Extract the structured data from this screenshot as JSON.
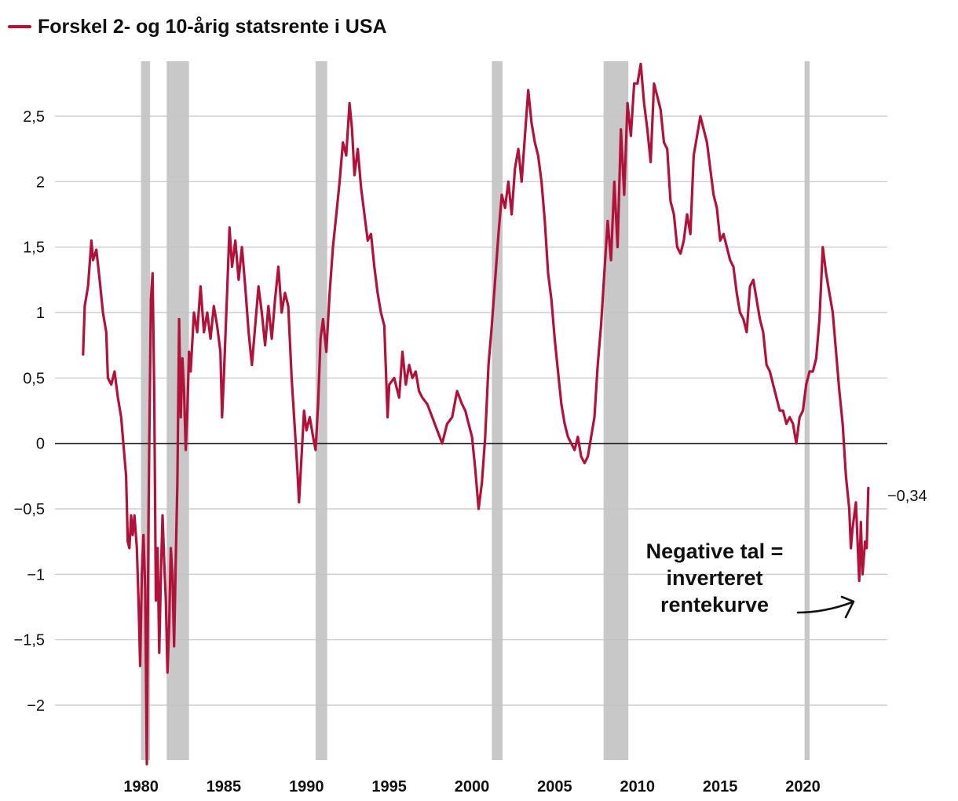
{
  "legend": {
    "label": "Forskel 2- og 10-årig statsrente i USA",
    "color": "#b0123a"
  },
  "chart_data": {
    "type": "line",
    "series": [
      {
        "name": "Forskel 2- og 10-årig statsrente i USA",
        "color": "#b0123a",
        "points": [
          [
            1976.5,
            0.68
          ],
          [
            1976.6,
            1.05
          ],
          [
            1976.8,
            1.2
          ],
          [
            1977.0,
            1.55
          ],
          [
            1977.1,
            1.4
          ],
          [
            1977.3,
            1.48
          ],
          [
            1977.5,
            1.25
          ],
          [
            1977.7,
            1.0
          ],
          [
            1977.9,
            0.85
          ],
          [
            1978.0,
            0.5
          ],
          [
            1978.2,
            0.45
          ],
          [
            1978.4,
            0.55
          ],
          [
            1978.6,
            0.35
          ],
          [
            1978.8,
            0.2
          ],
          [
            1978.9,
            0.05
          ],
          [
            1979.1,
            -0.25
          ],
          [
            1979.2,
            -0.75
          ],
          [
            1979.3,
            -0.8
          ],
          [
            1979.4,
            -0.55
          ],
          [
            1979.5,
            -0.7
          ],
          [
            1979.6,
            -0.55
          ],
          [
            1979.75,
            -0.8
          ],
          [
            1979.85,
            -1.2
          ],
          [
            1979.95,
            -1.7
          ],
          [
            1980.05,
            -1.0
          ],
          [
            1980.15,
            -0.7
          ],
          [
            1980.25,
            -1.1
          ],
          [
            1980.35,
            -2.45
          ],
          [
            1980.45,
            -0.6
          ],
          [
            1980.5,
            0.0
          ],
          [
            1980.6,
            1.1
          ],
          [
            1980.7,
            1.3
          ],
          [
            1980.8,
            0.4
          ],
          [
            1980.9,
            -1.2
          ],
          [
            1981.0,
            -0.8
          ],
          [
            1981.1,
            -1.6
          ],
          [
            1981.2,
            -1.0
          ],
          [
            1981.3,
            -0.55
          ],
          [
            1981.4,
            -0.9
          ],
          [
            1981.5,
            -1.2
          ],
          [
            1981.6,
            -1.75
          ],
          [
            1981.7,
            -1.4
          ],
          [
            1981.8,
            -0.8
          ],
          [
            1981.9,
            -1.0
          ],
          [
            1982.0,
            -1.55
          ],
          [
            1982.1,
            -0.9
          ],
          [
            1982.2,
            -0.3
          ],
          [
            1982.3,
            0.95
          ],
          [
            1982.4,
            0.2
          ],
          [
            1982.5,
            0.65
          ],
          [
            1982.6,
            0.4
          ],
          [
            1982.7,
            -0.05
          ],
          [
            1982.8,
            0.25
          ],
          [
            1982.9,
            0.7
          ],
          [
            1983.0,
            0.55
          ],
          [
            1983.2,
            1.0
          ],
          [
            1983.4,
            0.85
          ],
          [
            1983.6,
            1.2
          ],
          [
            1983.8,
            0.85
          ],
          [
            1984.0,
            1.0
          ],
          [
            1984.2,
            0.8
          ],
          [
            1984.4,
            1.05
          ],
          [
            1984.6,
            0.9
          ],
          [
            1984.8,
            0.7
          ],
          [
            1984.9,
            0.2
          ],
          [
            1985.0,
            0.5
          ],
          [
            1985.2,
            1.15
          ],
          [
            1985.35,
            1.65
          ],
          [
            1985.5,
            1.35
          ],
          [
            1985.7,
            1.55
          ],
          [
            1985.9,
            1.25
          ],
          [
            1986.1,
            1.5
          ],
          [
            1986.3,
            1.2
          ],
          [
            1986.5,
            0.85
          ],
          [
            1986.7,
            0.6
          ],
          [
            1986.9,
            0.9
          ],
          [
            1987.1,
            1.2
          ],
          [
            1987.3,
            1.0
          ],
          [
            1987.5,
            0.75
          ],
          [
            1987.7,
            1.05
          ],
          [
            1987.9,
            0.8
          ],
          [
            1988.1,
            1.1
          ],
          [
            1988.3,
            1.35
          ],
          [
            1988.5,
            1.0
          ],
          [
            1988.7,
            1.15
          ],
          [
            1988.9,
            1.05
          ],
          [
            1989.1,
            0.5
          ],
          [
            1989.3,
            0.1
          ],
          [
            1989.45,
            -0.2
          ],
          [
            1989.55,
            -0.45
          ],
          [
            1989.7,
            -0.1
          ],
          [
            1989.85,
            0.25
          ],
          [
            1990.0,
            0.1
          ],
          [
            1990.2,
            0.2
          ],
          [
            1990.4,
            0.05
          ],
          [
            1990.55,
            -0.05
          ],
          [
            1990.7,
            0.3
          ],
          [
            1990.85,
            0.8
          ],
          [
            1991.0,
            0.95
          ],
          [
            1991.2,
            0.7
          ],
          [
            1991.4,
            1.15
          ],
          [
            1991.6,
            1.5
          ],
          [
            1991.8,
            1.75
          ],
          [
            1992.0,
            2.0
          ],
          [
            1992.2,
            2.3
          ],
          [
            1992.4,
            2.2
          ],
          [
            1992.6,
            2.6
          ],
          [
            1992.75,
            2.4
          ],
          [
            1992.9,
            2.05
          ],
          [
            1993.1,
            2.25
          ],
          [
            1993.3,
            1.95
          ],
          [
            1993.5,
            1.75
          ],
          [
            1993.7,
            1.55
          ],
          [
            1993.9,
            1.6
          ],
          [
            1994.1,
            1.35
          ],
          [
            1994.3,
            1.15
          ],
          [
            1994.5,
            1.0
          ],
          [
            1994.7,
            0.9
          ],
          [
            1994.9,
            0.2
          ],
          [
            1995.0,
            0.45
          ],
          [
            1995.3,
            0.5
          ],
          [
            1995.6,
            0.35
          ],
          [
            1995.8,
            0.7
          ],
          [
            1996.0,
            0.45
          ],
          [
            1996.2,
            0.6
          ],
          [
            1996.4,
            0.5
          ],
          [
            1996.6,
            0.55
          ],
          [
            1996.8,
            0.4
          ],
          [
            1997.0,
            0.35
          ],
          [
            1997.3,
            0.3
          ],
          [
            1997.6,
            0.2
          ],
          [
            1997.9,
            0.1
          ],
          [
            1998.2,
            0.0
          ],
          [
            1998.5,
            0.15
          ],
          [
            1998.8,
            0.2
          ],
          [
            1999.1,
            0.4
          ],
          [
            1999.4,
            0.3
          ],
          [
            1999.6,
            0.25
          ],
          [
            1999.8,
            0.15
          ],
          [
            2000.0,
            0.05
          ],
          [
            2000.2,
            -0.2
          ],
          [
            2000.4,
            -0.5
          ],
          [
            2000.6,
            -0.3
          ],
          [
            2000.8,
            0.05
          ],
          [
            2001.0,
            0.6
          ],
          [
            2001.2,
            0.9
          ],
          [
            2001.4,
            1.25
          ],
          [
            2001.6,
            1.6
          ],
          [
            2001.8,
            1.9
          ],
          [
            2002.0,
            1.8
          ],
          [
            2002.2,
            2.0
          ],
          [
            2002.4,
            1.75
          ],
          [
            2002.6,
            2.1
          ],
          [
            2002.8,
            2.25
          ],
          [
            2003.0,
            2.0
          ],
          [
            2003.2,
            2.35
          ],
          [
            2003.4,
            2.7
          ],
          [
            2003.6,
            2.45
          ],
          [
            2003.8,
            2.3
          ],
          [
            2004.0,
            2.2
          ],
          [
            2004.2,
            2.0
          ],
          [
            2004.4,
            1.7
          ],
          [
            2004.6,
            1.3
          ],
          [
            2004.8,
            1.1
          ],
          [
            2005.0,
            0.8
          ],
          [
            2005.2,
            0.55
          ],
          [
            2005.4,
            0.3
          ],
          [
            2005.6,
            0.15
          ],
          [
            2005.8,
            0.05
          ],
          [
            2006.0,
            0.0
          ],
          [
            2006.2,
            -0.05
          ],
          [
            2006.4,
            0.05
          ],
          [
            2006.6,
            -0.1
          ],
          [
            2006.8,
            -0.15
          ],
          [
            2007.0,
            -0.1
          ],
          [
            2007.2,
            0.05
          ],
          [
            2007.4,
            0.2
          ],
          [
            2007.6,
            0.6
          ],
          [
            2007.8,
            0.9
          ],
          [
            2008.0,
            1.3
          ],
          [
            2008.2,
            1.7
          ],
          [
            2008.4,
            1.4
          ],
          [
            2008.6,
            2.0
          ],
          [
            2008.8,
            1.5
          ],
          [
            2009.0,
            2.4
          ],
          [
            2009.2,
            1.9
          ],
          [
            2009.4,
            2.6
          ],
          [
            2009.6,
            2.35
          ],
          [
            2009.8,
            2.75
          ],
          [
            2010.0,
            2.75
          ],
          [
            2010.2,
            2.9
          ],
          [
            2010.4,
            2.6
          ],
          [
            2010.6,
            2.4
          ],
          [
            2010.8,
            2.15
          ],
          [
            2011.0,
            2.75
          ],
          [
            2011.2,
            2.65
          ],
          [
            2011.4,
            2.55
          ],
          [
            2011.6,
            2.3
          ],
          [
            2011.8,
            2.25
          ],
          [
            2012.0,
            1.85
          ],
          [
            2012.2,
            1.75
          ],
          [
            2012.4,
            1.5
          ],
          [
            2012.6,
            1.45
          ],
          [
            2012.8,
            1.55
          ],
          [
            2013.0,
            1.75
          ],
          [
            2013.2,
            1.6
          ],
          [
            2013.4,
            2.2
          ],
          [
            2013.6,
            2.35
          ],
          [
            2013.8,
            2.5
          ],
          [
            2014.0,
            2.4
          ],
          [
            2014.2,
            2.3
          ],
          [
            2014.4,
            2.1
          ],
          [
            2014.6,
            1.9
          ],
          [
            2014.8,
            1.8
          ],
          [
            2015.0,
            1.55
          ],
          [
            2015.2,
            1.6
          ],
          [
            2015.4,
            1.5
          ],
          [
            2015.6,
            1.4
          ],
          [
            2015.8,
            1.35
          ],
          [
            2016.0,
            1.15
          ],
          [
            2016.2,
            1.0
          ],
          [
            2016.4,
            0.95
          ],
          [
            2016.6,
            0.85
          ],
          [
            2016.8,
            1.2
          ],
          [
            2017.0,
            1.25
          ],
          [
            2017.2,
            1.1
          ],
          [
            2017.4,
            0.95
          ],
          [
            2017.6,
            0.85
          ],
          [
            2017.8,
            0.6
          ],
          [
            2018.0,
            0.55
          ],
          [
            2018.2,
            0.45
          ],
          [
            2018.4,
            0.35
          ],
          [
            2018.6,
            0.25
          ],
          [
            2018.8,
            0.25
          ],
          [
            2019.0,
            0.15
          ],
          [
            2019.2,
            0.2
          ],
          [
            2019.4,
            0.15
          ],
          [
            2019.6,
            0.0
          ],
          [
            2019.8,
            0.2
          ],
          [
            2020.0,
            0.25
          ],
          [
            2020.2,
            0.45
          ],
          [
            2020.4,
            0.55
          ],
          [
            2020.6,
            0.55
          ],
          [
            2020.8,
            0.65
          ],
          [
            2021.0,
            0.95
          ],
          [
            2021.2,
            1.5
          ],
          [
            2021.4,
            1.3
          ],
          [
            2021.6,
            1.15
          ],
          [
            2021.8,
            1.0
          ],
          [
            2022.0,
            0.7
          ],
          [
            2022.2,
            0.4
          ],
          [
            2022.4,
            0.15
          ],
          [
            2022.6,
            -0.25
          ],
          [
            2022.8,
            -0.5
          ],
          [
            2022.9,
            -0.8
          ],
          [
            2023.0,
            -0.65
          ],
          [
            2023.2,
            -0.45
          ],
          [
            2023.4,
            -1.05
          ],
          [
            2023.5,
            -0.6
          ],
          [
            2023.6,
            -1.0
          ],
          [
            2023.75,
            -0.75
          ],
          [
            2023.85,
            -0.8
          ],
          [
            2023.95,
            -0.34
          ]
        ]
      }
    ],
    "recessions": [
      [
        1980.0,
        1980.55
      ],
      [
        1981.55,
        1982.9
      ],
      [
        1990.55,
        1991.25
      ],
      [
        2001.2,
        2001.85
      ],
      [
        2007.95,
        2009.45
      ],
      [
        2020.1,
        2020.4
      ]
    ],
    "xlim": [
      1974.8,
      2025.1
    ],
    "ylim": [
      -2.42,
      2.92
    ],
    "yticks": [
      2.5,
      2,
      1.5,
      1,
      0.5,
      0,
      -0.5,
      -1,
      -1.5,
      -2
    ],
    "ytick_labels": [
      "2,5",
      "2",
      "1,5",
      "1",
      "0,5",
      "0",
      "−0,5",
      "−1",
      "−1,5",
      "−2"
    ],
    "xticks": [
      1980,
      1985,
      1990,
      1995,
      2000,
      2005,
      2010,
      2015,
      2020
    ],
    "xtick_labels": [
      "1980",
      "1985",
      "1990",
      "1995",
      "2000",
      "2005",
      "2010",
      "2015",
      "2020"
    ],
    "end_label": "−0,34",
    "annotation": {
      "lines": [
        "Negative tal =",
        "inverteret",
        "rentekurve"
      ]
    },
    "colors": {
      "line": "#b0123a",
      "recession": "#c8c8c8",
      "grid": "#c4c4c4",
      "zero": "#222222"
    }
  }
}
